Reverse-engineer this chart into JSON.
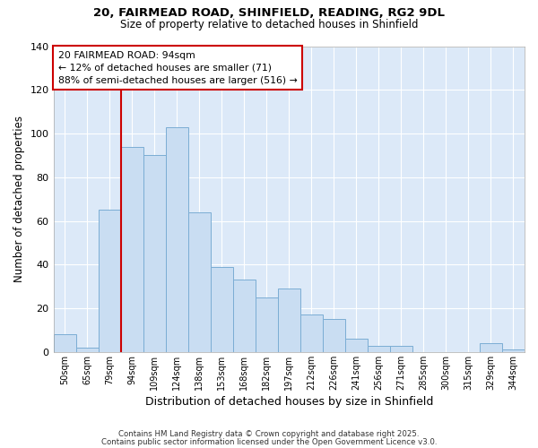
{
  "title": "20, FAIRMEAD ROAD, SHINFIELD, READING, RG2 9DL",
  "subtitle": "Size of property relative to detached houses in Shinfield",
  "xlabel": "Distribution of detached houses by size in Shinfield",
  "ylabel": "Number of detached properties",
  "bar_labels": [
    "50sqm",
    "65sqm",
    "79sqm",
    "94sqm",
    "109sqm",
    "124sqm",
    "138sqm",
    "153sqm",
    "168sqm",
    "182sqm",
    "197sqm",
    "212sqm",
    "226sqm",
    "241sqm",
    "256sqm",
    "271sqm",
    "285sqm",
    "300sqm",
    "315sqm",
    "329sqm",
    "344sqm"
  ],
  "bar_values": [
    8,
    2,
    65,
    94,
    90,
    103,
    64,
    39,
    33,
    25,
    29,
    17,
    15,
    6,
    3,
    3,
    0,
    0,
    0,
    4,
    1
  ],
  "bar_color": "#c9ddf2",
  "bar_edge_color": "#7badd4",
  "vline_color": "#cc0000",
  "vline_index": 3,
  "ylim": [
    0,
    140
  ],
  "yticks": [
    0,
    20,
    40,
    60,
    80,
    100,
    120,
    140
  ],
  "annotation_title": "20 FAIRMEAD ROAD: 94sqm",
  "annotation_line1": "← 12% of detached houses are smaller (71)",
  "annotation_line2": "88% of semi-detached houses are larger (516) →",
  "footer1": "Contains HM Land Registry data © Crown copyright and database right 2025.",
  "footer2": "Contains public sector information licensed under the Open Government Licence v3.0.",
  "bg_color": "#ffffff",
  "plot_bg_color": "#dce9f8",
  "grid_color": "#ffffff"
}
